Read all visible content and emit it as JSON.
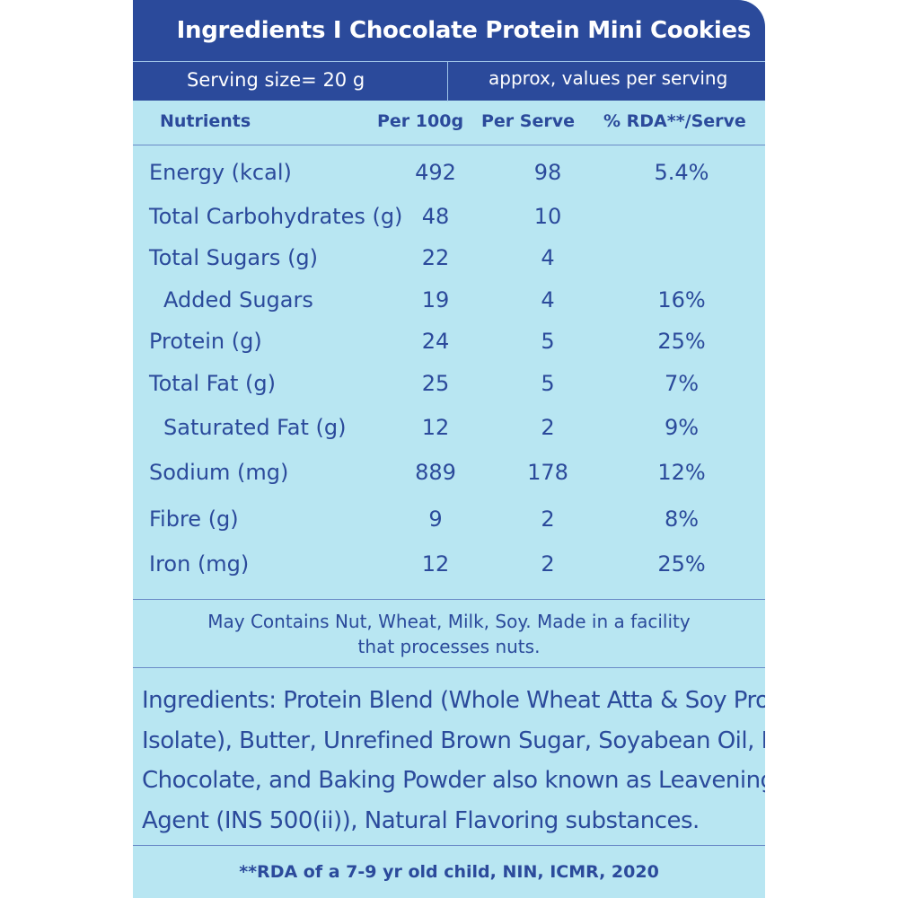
{
  "title": "Ingredients I Chocolate Protein Mini Cookies",
  "serving": {
    "label": "Serving size=  20 g",
    "note": "approx, values per serving"
  },
  "columns": {
    "nutrients": "Nutrients",
    "per100g": "Per 100g",
    "perServe": "Per Serve",
    "rda": "% RDA**/Serve"
  },
  "rows": [
    {
      "name": "Energy (kcal)",
      "per100g": "492",
      "perServe": "98",
      "rda": "5.4%"
    },
    {
      "name": "Total Carbohydrates (g)",
      "per100g": "48",
      "perServe": "10",
      "rda": ""
    },
    {
      "name": "Total Sugars (g)",
      "per100g": "22",
      "perServe": "4",
      "rda": ""
    },
    {
      "name": "Added Sugars",
      "per100g": "19",
      "perServe": "4",
      "rda": "16%"
    },
    {
      "name": "Protein (g)",
      "per100g": "24",
      "perServe": "5",
      "rda": "25%"
    },
    {
      "name": "Total Fat (g)",
      "per100g": "25",
      "perServe": "5",
      "rda": "7%"
    },
    {
      "name": "Saturated Fat (g)",
      "per100g": "12",
      "perServe": "2",
      "rda": "9%"
    },
    {
      "name": "Sodium (mg)",
      "per100g": "889",
      "perServe": "178",
      "rda": "12%"
    },
    {
      "name": "Fibre (g)",
      "per100g": "9",
      "perServe": "2",
      "rda": "8%"
    },
    {
      "name": "Iron (mg)",
      "per100g": "12",
      "perServe": "2",
      "rda": "25%"
    }
  ],
  "allergen": {
    "line1": "May Contains Nut, Wheat, Milk, Soy. Made in a facility",
    "line2": "that processes nuts."
  },
  "ingredients": {
    "line1": "Ingredients: Protein Blend (Whole Wheat Atta & Soy Protein",
    "line2": "Isolate), Butter, Unrefined Brown Sugar, Soyabean Oil, Dates,",
    "line3": "Chocolate, and Baking Powder also known as Leavening",
    "line4": "Agent (INS 500(ii)), Natural Flavoring substances."
  },
  "footnote": "**RDA of a 7-9 yr old child, NIN, ICMR, 2020",
  "colors": {
    "navy": "#2b4a9b",
    "panel": "#b8e6f2",
    "white": "#ffffff"
  }
}
